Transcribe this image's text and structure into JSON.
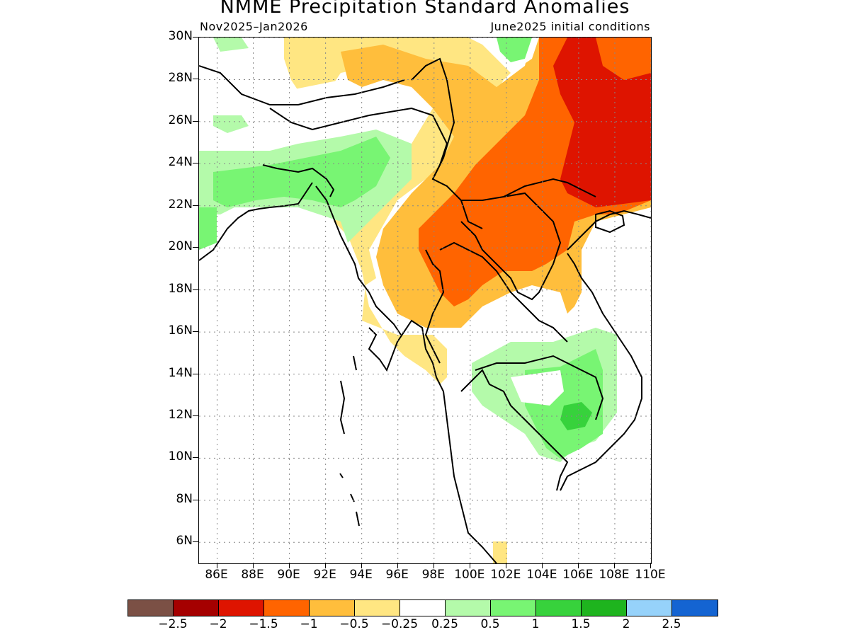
{
  "title": "NMME Precipitation Standard Anomalies",
  "subtitle_left": "Nov2025–Jan2026",
  "subtitle_right": "June2025 initial conditions",
  "map": {
    "region": "South and Southeast Asia",
    "lat_range": [
      5,
      30
    ],
    "lon_range": [
      85,
      110
    ],
    "lat_labels": [
      "30N",
      "28N",
      "26N",
      "24N",
      "22N",
      "20N",
      "18N",
      "16N",
      "14N",
      "12N",
      "10N",
      "8N",
      "6N"
    ],
    "lon_labels": [
      "86E",
      "88E",
      "90E",
      "92E",
      "94E",
      "96E",
      "98E",
      "100E",
      "102E",
      "104E",
      "106E",
      "108E",
      "110E"
    ],
    "grid": "dotted"
  },
  "legend": {
    "colors": [
      "#7b5045",
      "#a50000",
      "#de1400",
      "#ff6400",
      "#ffbe3c",
      "#ffe682",
      "#ffffff",
      "#b4faaa",
      "#78f573",
      "#37d23c",
      "#1eb41e",
      "#96d2fa",
      "#1464d2"
    ],
    "labels": [
      "−2.5",
      "−2",
      "−1.5",
      "−1",
      "−0.5",
      "−0.25",
      "0.25",
      "0.5",
      "1",
      "1.5",
      "2",
      "2.5"
    ]
  }
}
